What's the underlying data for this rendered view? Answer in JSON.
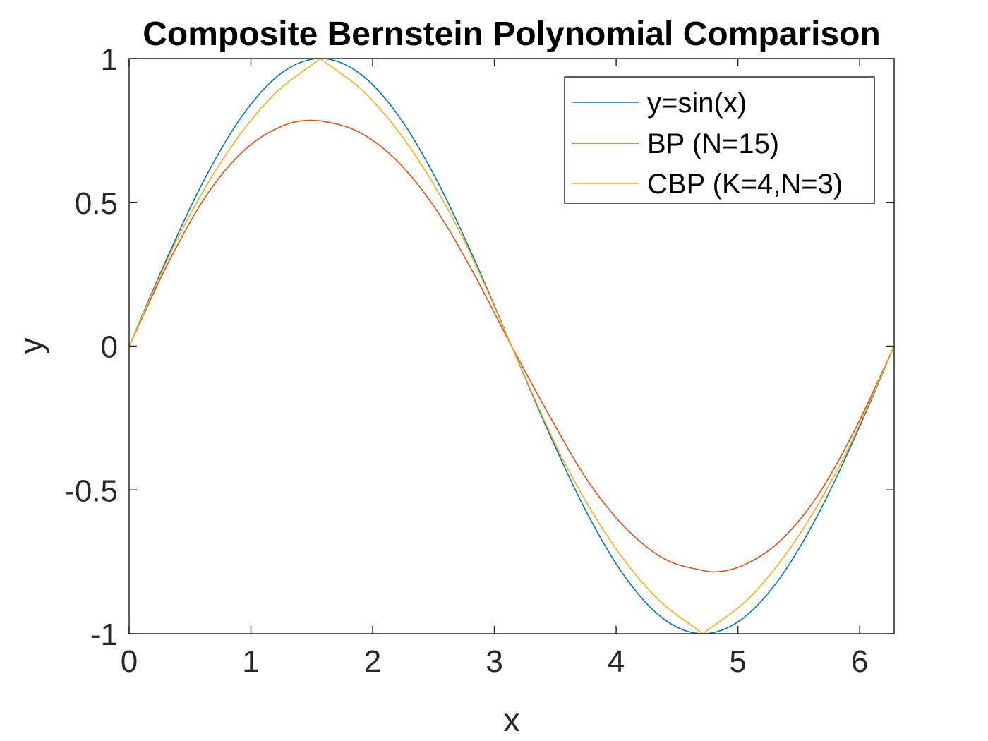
{
  "chart_data": {
    "type": "line",
    "title": "Composite Bernstein Polynomial Comparison",
    "xlabel": "x",
    "ylabel": "y",
    "xlim": [
      0,
      6.2832
    ],
    "ylim": [
      -1,
      1
    ],
    "x_ticks": [
      0,
      1,
      2,
      3,
      4,
      5,
      6
    ],
    "x_tick_labels": [
      "0",
      "1",
      "2",
      "3",
      "4",
      "5",
      "6"
    ],
    "y_ticks": [
      -1,
      -0.5,
      0,
      0.5,
      1
    ],
    "y_tick_labels": [
      "-1",
      "-0.5",
      "0",
      "0.5",
      "1"
    ],
    "grid": false,
    "legend_position": "top-right",
    "series": [
      {
        "name": "y=sin(x)",
        "color": "#0072BD",
        "x": [
          0,
          0.3142,
          0.6283,
          0.9425,
          1.2566,
          1.5708,
          1.885,
          2.1991,
          2.5133,
          2.8274,
          3.1416,
          3.4558,
          3.7699,
          4.0841,
          4.3982,
          4.7124,
          5.0265,
          5.3407,
          5.6549,
          5.969,
          6.2832
        ],
        "y": [
          0,
          0.309,
          0.5878,
          0.809,
          0.9511,
          1,
          0.9511,
          0.809,
          0.5878,
          0.309,
          0,
          -0.309,
          -0.5878,
          -0.809,
          -0.9511,
          -1,
          -0.9511,
          -0.809,
          -0.5878,
          -0.309,
          0
        ]
      },
      {
        "name": "BP (N=15)",
        "color": "#D95319",
        "x": [
          0,
          0.3142,
          0.6283,
          0.9425,
          1.2566,
          1.4874,
          1.5708,
          1.885,
          2.1991,
          2.5133,
          2.8274,
          3.1416,
          3.4558,
          3.7699,
          4.0841,
          4.3982,
          4.7124,
          4.7958,
          5.0265,
          5.3407,
          5.6549,
          5.969,
          6.2832
        ],
        "y": [
          0,
          0.284,
          0.52,
          0.68,
          0.765,
          0.785,
          0.783,
          0.745,
          0.645,
          0.48,
          0.255,
          0,
          -0.245,
          -0.47,
          -0.635,
          -0.74,
          -0.78,
          -0.785,
          -0.765,
          -0.68,
          -0.52,
          -0.284,
          0
        ]
      },
      {
        "name": "CBP (K=4,N=3)",
        "color": "#EDB120",
        "x": [
          0,
          0.3927,
          0.7854,
          1.1781,
          1.5708,
          1.9635,
          2.3562,
          2.7489,
          3.1416,
          3.5343,
          3.927,
          4.3197,
          4.7124,
          5.1051,
          5.4978,
          5.8905,
          6.2832
        ],
        "y": [
          0,
          0.37,
          0.66,
          0.87,
          1,
          0.87,
          0.66,
          0.37,
          0,
          -0.37,
          -0.66,
          -0.87,
          -1,
          -0.87,
          -0.66,
          -0.37,
          0
        ]
      }
    ]
  }
}
